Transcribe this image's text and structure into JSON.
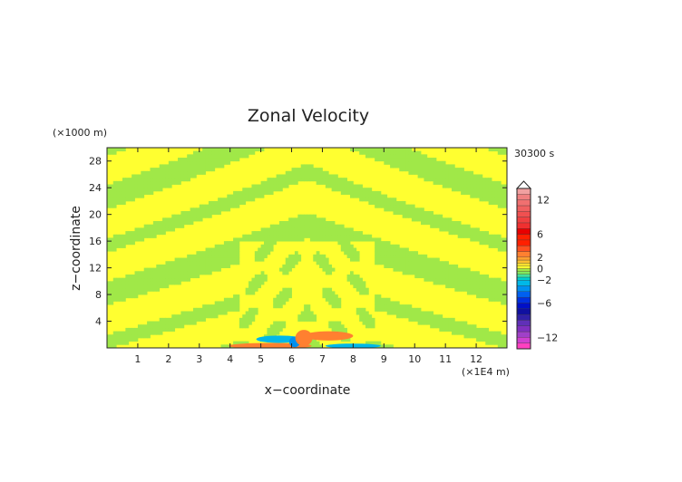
{
  "chart_data": {
    "type": "heatmap",
    "title": "Zonal Velocity",
    "time_label": "30300 s",
    "xlabel": "x−coordinate",
    "ylabel": "z−coordinate",
    "x_unit": "(×1E4 m)",
    "y_unit": "(×1000 m)",
    "xlim": [
      0,
      13
    ],
    "ylim": [
      0,
      30
    ],
    "x_ticks": [
      "1",
      "2",
      "3",
      "4",
      "5",
      "6",
      "7",
      "8",
      "9",
      "10",
      "11",
      "12"
    ],
    "y_ticks": [
      "4",
      "8",
      "12",
      "16",
      "20",
      "24",
      "28"
    ],
    "grid": false,
    "colorbar": {
      "ticks": [
        "12",
        "6",
        "2",
        "0",
        "−2",
        "−6",
        "−12"
      ],
      "tick_values": [
        12,
        6,
        2,
        0,
        -2,
        -6,
        -12
      ],
      "levels": [
        -14,
        -13,
        -12,
        -11,
        -10,
        -9,
        -8,
        -7,
        -6,
        -5,
        -4,
        -3,
        -2,
        -1.5,
        -1,
        -0.5,
        0,
        0.5,
        1,
        1.5,
        2,
        3,
        4,
        5,
        6,
        7,
        8,
        9,
        10,
        11,
        12,
        13,
        14
      ],
      "colors": [
        "#ff40c0",
        "#d040d0",
        "#a040c8",
        "#8030c0",
        "#6030b8",
        "#3020a8",
        "#1010a0",
        "#0010c8",
        "#0030e0",
        "#0060f0",
        "#0090f0",
        "#00b8e8",
        "#00d0d0",
        "#40e0a0",
        "#80e860",
        "#a0e848",
        "#ffff30",
        "#ffe030",
        "#ffc030",
        "#ffa030",
        "#ff8030",
        "#ff5020",
        "#ff2000",
        "#ff2000",
        "#e80000",
        "#f03030",
        "#f04040",
        "#f05050",
        "#f06060",
        "#f07070",
        "#f08080",
        "#f0a0a0"
      ]
    },
    "field": {
      "background_value": 0.3,
      "band_value": -0.5,
      "features": [
        {
          "name": "lower-left-warm",
          "x": 5.3,
          "z": 0.3,
          "value": 2.5
        },
        {
          "name": "left-jet-cool",
          "x": 5.6,
          "z": 1.3,
          "value": -2.2
        },
        {
          "name": "left-core-cool",
          "x": 6.1,
          "z": 0.9,
          "value": -3.5
        },
        {
          "name": "center-warm",
          "x": 6.4,
          "z": 1.5,
          "value": 2.5
        },
        {
          "name": "right-jet-warm",
          "x": 7.2,
          "z": 1.8,
          "value": 2.5
        },
        {
          "name": "lower-right-cool",
          "x": 8.0,
          "z": 0.3,
          "value": -2.2
        }
      ]
    }
  }
}
